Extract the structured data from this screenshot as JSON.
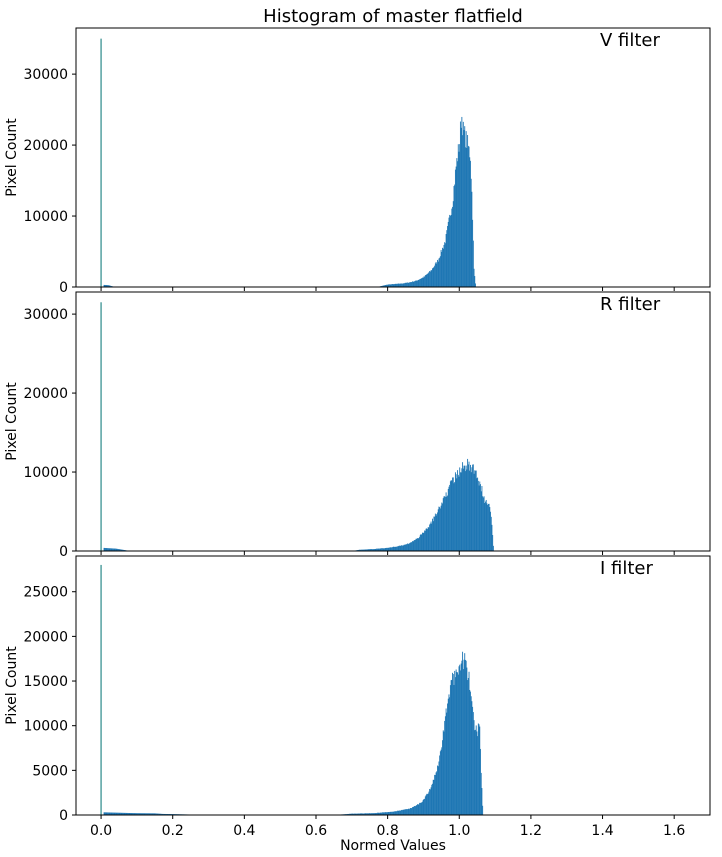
{
  "chart_data": {
    "type": "bar",
    "title": "Histogram of master flatfield",
    "xlabel": "Normed Values",
    "xlim": [
      -0.07,
      1.7
    ],
    "xticks": [
      0.0,
      0.2,
      0.4,
      0.6,
      0.8,
      1.0,
      1.2,
      1.4,
      1.6
    ],
    "xtick_labels": [
      "0.0",
      "0.2",
      "0.4",
      "0.6",
      "0.8",
      "1.0",
      "1.2",
      "1.4",
      "1.6"
    ],
    "bar_color": "#1f77b4",
    "spike_color": "#2a8a8a",
    "panels": [
      {
        "name": "V filter",
        "ylabel": "Pixel Count",
        "ylim": [
          0,
          36500
        ],
        "yticks": [
          0,
          10000,
          20000,
          30000
        ],
        "ytick_labels": [
          "0",
          "10000",
          "20000",
          "30000"
        ],
        "spike": {
          "x": 0.0,
          "y": 35000
        },
        "floor": [
          [
            0.005,
            300
          ],
          [
            0.02,
            250
          ],
          [
            0.03,
            100
          ],
          [
            0.04,
            0
          ]
        ],
        "profile": [
          [
            0.77,
            0
          ],
          [
            0.78,
            120
          ],
          [
            0.8,
            350
          ],
          [
            0.82,
            420
          ],
          [
            0.84,
            500
          ],
          [
            0.86,
            650
          ],
          [
            0.88,
            900
          ],
          [
            0.9,
            1400
          ],
          [
            0.92,
            2300
          ],
          [
            0.94,
            3800
          ],
          [
            0.96,
            6500
          ],
          [
            0.98,
            12000
          ],
          [
            0.99,
            17000
          ],
          [
            1.0,
            20500
          ],
          [
            1.005,
            24500
          ],
          [
            1.01,
            22000
          ],
          [
            1.02,
            20500
          ],
          [
            1.03,
            18500
          ],
          [
            1.035,
            12000
          ],
          [
            1.04,
            2500
          ],
          [
            1.045,
            0
          ]
        ]
      },
      {
        "name": "R filter",
        "ylabel": "Pixel Count",
        "ylim": [
          0,
          32800
        ],
        "yticks": [
          0,
          10000,
          20000,
          30000
        ],
        "ytick_labels": [
          "0",
          "10000",
          "20000",
          "30000"
        ],
        "spike": {
          "x": 0.0,
          "y": 31500
        },
        "floor": [
          [
            0.005,
            400
          ],
          [
            0.02,
            350
          ],
          [
            0.04,
            300
          ],
          [
            0.06,
            150
          ],
          [
            0.08,
            0
          ]
        ],
        "profile": [
          [
            0.7,
            0
          ],
          [
            0.72,
            150
          ],
          [
            0.76,
            250
          ],
          [
            0.8,
            400
          ],
          [
            0.84,
            700
          ],
          [
            0.86,
            1000
          ],
          [
            0.88,
            1500
          ],
          [
            0.9,
            2400
          ],
          [
            0.92,
            3500
          ],
          [
            0.94,
            5200
          ],
          [
            0.96,
            7000
          ],
          [
            0.98,
            8800
          ],
          [
            1.0,
            10200
          ],
          [
            1.02,
            11000
          ],
          [
            1.03,
            10800
          ],
          [
            1.04,
            10200
          ],
          [
            1.05,
            9400
          ],
          [
            1.06,
            8000
          ],
          [
            1.07,
            6500
          ],
          [
            1.08,
            6200
          ],
          [
            1.085,
            5800
          ],
          [
            1.09,
            3500
          ],
          [
            1.095,
            0
          ]
        ]
      },
      {
        "name": "I filter",
        "ylabel": "Pixel Count",
        "ylim": [
          0,
          29000
        ],
        "yticks": [
          0,
          5000,
          10000,
          15000,
          20000,
          25000
        ],
        "ytick_labels": [
          "0",
          "5000",
          "10000",
          "15000",
          "20000",
          "25000"
        ],
        "spike": {
          "x": 0.0,
          "y": 28000
        },
        "floor": [
          [
            0.005,
            300
          ],
          [
            0.05,
            250
          ],
          [
            0.1,
            200
          ],
          [
            0.15,
            180
          ],
          [
            0.17,
            120
          ],
          [
            0.2,
            100
          ],
          [
            0.25,
            50
          ],
          [
            0.3,
            0
          ]
        ],
        "profile": [
          [
            0.65,
            0
          ],
          [
            0.7,
            150
          ],
          [
            0.76,
            200
          ],
          [
            0.82,
            400
          ],
          [
            0.86,
            700
          ],
          [
            0.88,
            1100
          ],
          [
            0.9,
            1700
          ],
          [
            0.92,
            3000
          ],
          [
            0.94,
            5500
          ],
          [
            0.95,
            8000
          ],
          [
            0.96,
            11000
          ],
          [
            0.97,
            13500
          ],
          [
            0.98,
            15000
          ],
          [
            0.99,
            16200
          ],
          [
            1.0,
            17200
          ],
          [
            1.01,
            17500
          ],
          [
            1.02,
            16500
          ],
          [
            1.03,
            14000
          ],
          [
            1.04,
            10000
          ],
          [
            1.05,
            9200
          ],
          [
            1.055,
            11000
          ],
          [
            1.06,
            5000
          ],
          [
            1.065,
            0
          ]
        ]
      }
    ]
  }
}
